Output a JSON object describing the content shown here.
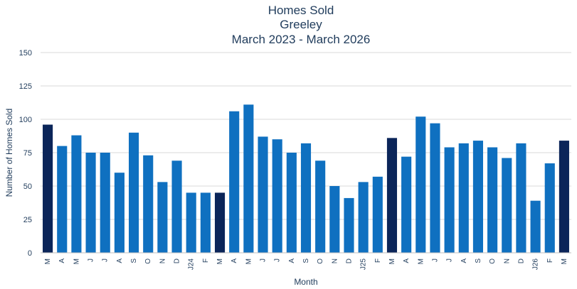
{
  "chart_data": {
    "type": "bar",
    "title": [
      "Homes Sold",
      "Greeley",
      "March 2023 - March 2026"
    ],
    "xlabel": "Month",
    "ylabel": "Number of Homes Sold",
    "ylim": [
      0,
      150
    ],
    "yticks": [
      0,
      25,
      50,
      75,
      100,
      125,
      150
    ],
    "grid": true,
    "legend": "none",
    "colors": {
      "regular": "#0f70c0",
      "highlight": "#0b2559"
    },
    "categories": [
      "M",
      "A",
      "M",
      "J",
      "J",
      "A",
      "S",
      "O",
      "N",
      "D",
      "J24",
      "F",
      "M",
      "A",
      "M",
      "J",
      "J",
      "A",
      "S",
      "O",
      "N",
      "D",
      "J25",
      "F",
      "M",
      "A",
      "M",
      "J",
      "J",
      "A",
      "S",
      "O",
      "N",
      "D",
      "J26",
      "F",
      "M"
    ],
    "values": [
      96,
      80,
      88,
      75,
      75,
      60,
      90,
      73,
      53,
      69,
      45,
      45,
      45,
      106,
      111,
      87,
      85,
      75,
      82,
      69,
      50,
      41,
      53,
      57,
      86,
      72,
      102,
      97,
      79,
      82,
      84,
      79,
      71,
      82,
      39,
      67,
      84
    ],
    "highlight_indices": [
      0,
      12,
      24,
      36
    ]
  }
}
